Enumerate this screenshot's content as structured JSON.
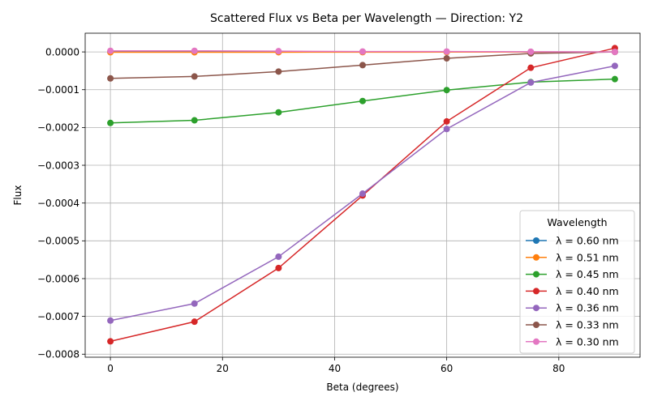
{
  "chart_data": {
    "type": "line",
    "title": "Scattered Flux vs Beta per Wavelength — Direction: Y2",
    "xlabel": "Beta (degrees)",
    "ylabel": "Flux",
    "xlim": [
      -4.5,
      94.5
    ],
    "ylim": [
      -0.000808,
      4.95e-05
    ],
    "xticks": [
      0,
      20,
      40,
      60,
      80
    ],
    "xtick_labels": [
      "0",
      "20",
      "40",
      "60",
      "80"
    ],
    "yticks": [
      0,
      -0.0001,
      -0.0002,
      -0.0003,
      -0.0004,
      -0.0005,
      -0.0006,
      -0.0007,
      -0.0008
    ],
    "ytick_labels": [
      "0.0000",
      "−0.0001",
      "−0.0002",
      "−0.0003",
      "−0.0004",
      "−0.0005",
      "−0.0006",
      "−0.0007",
      "−0.0008"
    ],
    "grid": true,
    "legend": {
      "title": "Wavelength",
      "placement": "lower-right"
    },
    "x": [
      0,
      15,
      30,
      45,
      60,
      75,
      90
    ],
    "series": [
      {
        "name": "λ = 0.60 nm",
        "color": "#1f77b4",
        "values": [
          2e-07,
          2e-07,
          1e-07,
          1e-07,
          1e-07,
          0.0,
          0.0
        ]
      },
      {
        "name": "λ = 0.51 nm",
        "color": "#ff7f0e",
        "values": [
          -1e-06,
          -1e-06,
          -8e-07,
          -6e-07,
          -4e-07,
          -2e-07,
          0.0
        ]
      },
      {
        "name": "λ = 0.45 nm",
        "color": "#2ca02c",
        "values": [
          -0.000188,
          -0.000181,
          -0.00016,
          -0.00013,
          -0.000101,
          -8e-05,
          -7.2e-05
        ]
      },
      {
        "name": "λ = 0.40 nm",
        "color": "#d62728",
        "values": [
          -0.000766,
          -0.000714,
          -0.000572,
          -0.00038,
          -0.000184,
          -4.2e-05,
          1e-05
        ]
      },
      {
        "name": "λ = 0.36 nm",
        "color": "#9467bd",
        "values": [
          -0.000711,
          -0.000666,
          -0.000542,
          -0.000375,
          -0.000204,
          -8.1e-05,
          -3.7e-05
        ]
      },
      {
        "name": "λ = 0.33 nm",
        "color": "#8c564b",
        "values": [
          -7e-05,
          -6.5e-05,
          -5.2e-05,
          -3.5e-05,
          -1.7e-05,
          -4e-06,
          0.0
        ]
      },
      {
        "name": "λ = 0.30 nm",
        "color": "#e377c2",
        "values": [
          3e-06,
          3e-06,
          2e-06,
          1e-06,
          1e-06,
          5e-07,
          0.0
        ]
      }
    ]
  }
}
